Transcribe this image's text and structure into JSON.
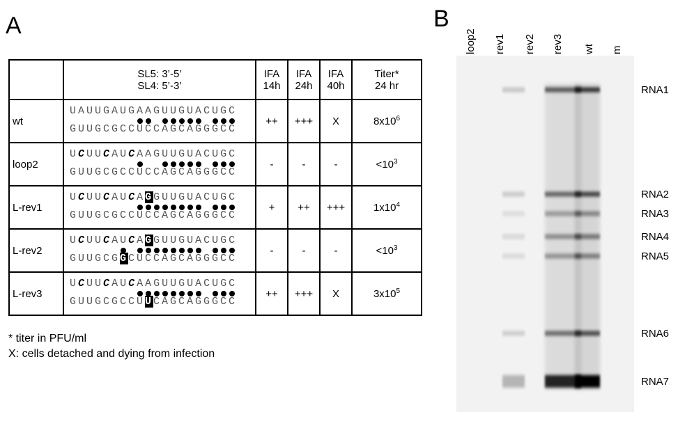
{
  "panel_a": {
    "label": "A",
    "table": {
      "header": {
        "sequence": [
          "SL5: 3’-5’",
          "SL4: 5’-3’"
        ],
        "ifa_14h": [
          "IFA",
          "14h"
        ],
        "ifa_24h": [
          "IFA",
          "24h"
        ],
        "ifa_40h": [
          "IFA",
          "40h"
        ],
        "titer": [
          "Titer*",
          "24 hr"
        ]
      },
      "rows": [
        {
          "name": "wt",
          "sl5": [
            {
              "text": "UAUUGAUGAAGUUGUACUGC"
            }
          ],
          "sl4": [
            {
              "text": "GUUGCGCCUCCAGCAGGGCC"
            }
          ],
          "ifa_14h": "++",
          "ifa_24h": "+++",
          "ifa_40h": "X",
          "titer": {
            "base": "8x10",
            "exp": "6"
          }
        },
        {
          "name": "loop2",
          "sl5": [
            {
              "text": "U"
            },
            {
              "text": "C",
              "style": "bold-italic"
            },
            {
              "text": "UU"
            },
            {
              "text": "C",
              "style": "bold-italic"
            },
            {
              "text": "AU"
            },
            {
              "text": "C",
              "style": "bold-italic"
            },
            {
              "text": "AAGUUGUACUGC"
            }
          ],
          "sl4": [
            {
              "text": "GUUGCGCCUCCAGCAGGGCC"
            }
          ],
          "ifa_14h": "-",
          "ifa_24h": "-",
          "ifa_40h": "-",
          "titer": {
            "base": "<10",
            "exp": "3"
          }
        },
        {
          "name": "L-rev1",
          "sl5": [
            {
              "text": "U"
            },
            {
              "text": "C",
              "style": "bold-italic"
            },
            {
              "text": "UU"
            },
            {
              "text": "C",
              "style": "bold-italic"
            },
            {
              "text": "AU"
            },
            {
              "text": "C",
              "style": "bold-italic"
            },
            {
              "text": "A"
            },
            {
              "text": "G",
              "style": "boxed"
            },
            {
              "text": "GUUGUACUGC"
            }
          ],
          "sl4": [
            {
              "text": "GUUGCGCCUCCAGCAGGGCC"
            }
          ],
          "ifa_14h": "+",
          "ifa_24h": "++",
          "ifa_40h": "+++",
          "titer": {
            "base": "1x10",
            "exp": "4"
          }
        },
        {
          "name": "L-rev2",
          "sl5": [
            {
              "text": "U"
            },
            {
              "text": "C",
              "style": "bold-italic"
            },
            {
              "text": "UU"
            },
            {
              "text": "C",
              "style": "bold-italic"
            },
            {
              "text": "AU"
            },
            {
              "text": "C",
              "style": "bold-italic"
            },
            {
              "text": "A"
            },
            {
              "text": "G",
              "style": "boxed"
            },
            {
              "text": "GUUGUACUGC"
            }
          ],
          "sl4": [
            {
              "text": "GUUGCG"
            },
            {
              "text": "G",
              "style": "boxed"
            },
            {
              "text": "CUCCAGCAGGGCC"
            }
          ],
          "ifa_14h": "-",
          "ifa_24h": "-",
          "ifa_40h": "-",
          "titer": {
            "base": "<10",
            "exp": "3"
          }
        },
        {
          "name": "L-rev3",
          "sl5": [
            {
              "text": "U"
            },
            {
              "text": "C",
              "style": "bold-italic"
            },
            {
              "text": "UU"
            },
            {
              "text": "C",
              "style": "bold-italic"
            },
            {
              "text": "AU"
            },
            {
              "text": "C",
              "style": "bold-italic"
            },
            {
              "text": "AAGUUGUACUGC"
            }
          ],
          "sl4": [
            {
              "text": "GUUGCGCCU"
            },
            {
              "text": "U",
              "style": "boxed"
            },
            {
              "text": "CAGCAGGGCC"
            }
          ],
          "ifa_14h": "++",
          "ifa_24h": "+++",
          "ifa_40h": "X",
          "titer": {
            "base": "3x10",
            "exp": "5"
          }
        }
      ]
    },
    "footnotes": [
      "* titer in PFU/ml",
      "X: cells detached and dying from infection"
    ]
  },
  "panel_b": {
    "label": "B",
    "lanes": [
      "loop2",
      "rev1",
      "rev2",
      "rev3",
      "wt",
      "m"
    ],
    "bands": [
      "RNA1",
      "RNA2",
      "RNA3",
      "RNA4",
      "RNA5",
      "RNA6",
      "RNA7"
    ]
  }
}
